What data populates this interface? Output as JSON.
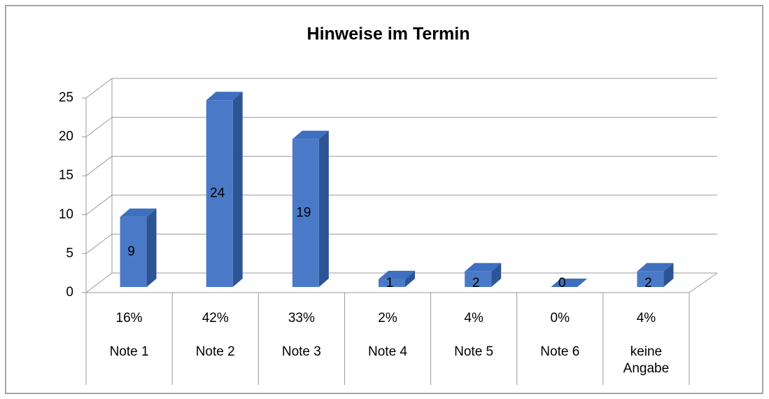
{
  "chart_data": {
    "type": "bar3d",
    "title": "Hinweise im Termin",
    "categories": [
      "Note 1",
      "Note 2",
      "Note 3",
      "Note 4",
      "Note 5",
      "Note 6",
      "keine Angabe"
    ],
    "percentages": [
      16,
      42,
      33,
      2,
      4,
      0,
      4
    ],
    "percentage_labels": [
      "16%",
      "42%",
      "33%",
      "2%",
      "4%",
      "0%",
      "4%"
    ],
    "values": [
      9,
      24,
      19,
      1,
      2,
      0,
      2
    ],
    "color": "#4a7ac7",
    "ylim": [
      0,
      25
    ],
    "yticks": [
      0,
      5,
      10,
      15,
      20,
      25
    ],
    "grid": true
  }
}
